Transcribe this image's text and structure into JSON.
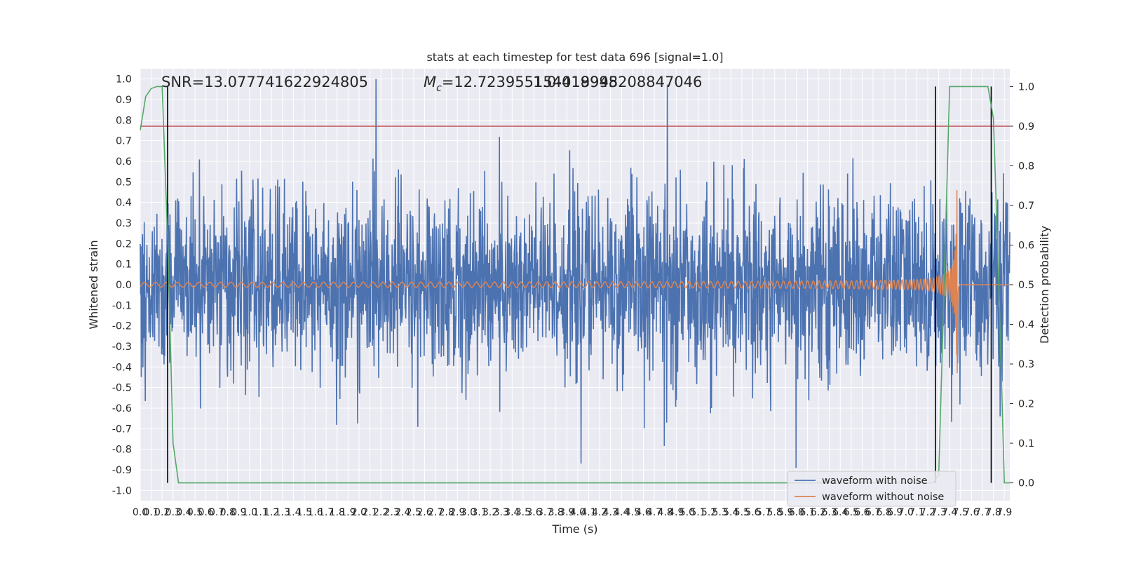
{
  "chart_data": {
    "type": "line",
    "title": "stats at each timestep for test data 696 [signal=1.0]",
    "xlabel": "Time (s)",
    "ylabel": "Whitened strain",
    "y2label": "Detection probability",
    "xlim": [
      0.0,
      7.95
    ],
    "ylim": [
      -1.05,
      1.05
    ],
    "y2lim": [
      -0.045,
      1.045
    ],
    "x_ticks": [
      "0.0",
      "0.1",
      "0.2",
      "0.3",
      "0.4",
      "0.5",
      "0.6",
      "0.7",
      "0.8",
      "0.9",
      "1.0",
      "1.1",
      "1.2",
      "1.3",
      "1.4",
      "1.5",
      "1.6",
      "1.7",
      "1.8",
      "1.9",
      "2.0",
      "2.1",
      "2.2",
      "2.3",
      "2.4",
      "2.5",
      "2.6",
      "2.7",
      "2.8",
      "2.9",
      "3.0",
      "3.1",
      "3.2",
      "3.3",
      "3.4",
      "3.5",
      "3.6",
      "3.7",
      "3.8",
      "3.9",
      "4.0",
      "4.1",
      "4.2",
      "4.3",
      "4.4",
      "4.5",
      "4.6",
      "4.7",
      "4.8",
      "4.9",
      "5.0",
      "5.1",
      "5.2",
      "5.3",
      "5.4",
      "5.5",
      "5.6",
      "5.7",
      "5.8",
      "5.9",
      "6.0",
      "6.1",
      "6.2",
      "6.3",
      "6.4",
      "6.5",
      "6.6",
      "6.7",
      "6.8",
      "6.9",
      "7.0",
      "7.1",
      "7.2",
      "7.3",
      "7.4",
      "7.5",
      "7.6",
      "7.7",
      "7.8",
      "7.9"
    ],
    "y_ticks": [
      "1.0",
      "0.9",
      "0.8",
      "0.7",
      "0.6",
      "0.5",
      "0.4",
      "0.3",
      "0.2",
      "0.1",
      "0.0",
      "-0.1",
      "-0.2",
      "-0.3",
      "-0.4",
      "-0.5",
      "-0.6",
      "-0.7",
      "-0.8",
      "-0.9",
      "-1.0"
    ],
    "y2_ticks": [
      "1.0",
      "0.9",
      "0.8",
      "0.7",
      "0.6",
      "0.5",
      "0.4",
      "0.3",
      "0.2",
      "0.1",
      "0.0"
    ],
    "series": [
      {
        "name": "waveform with noise",
        "color": "#4c72b0",
        "kind": "noise",
        "std": 0.22,
        "min": -0.94,
        "max": 1.0
      },
      {
        "name": "waveform without noise",
        "color": "#dd8452",
        "kind": "chirp",
        "merger_time": 7.47,
        "peak_amplitude": 0.46,
        "early_amplitude": 0.012
      },
      {
        "name": "detection probability",
        "color": "#55a868",
        "axis": "y2",
        "x": [
          0.0,
          0.05,
          0.1,
          0.15,
          0.2,
          0.25,
          0.3,
          0.35,
          0.4,
          7.25,
          7.3,
          7.35,
          7.4,
          7.45,
          7.75,
          7.8,
          7.85,
          7.9,
          7.95
        ],
        "y": [
          0.89,
          0.975,
          0.995,
          1.0,
          1.0,
          0.62,
          0.1,
          0.0,
          0.0,
          0.0,
          0.02,
          0.5,
          1.0,
          1.0,
          1.0,
          0.92,
          0.5,
          0.0,
          0.0
        ]
      }
    ],
    "threshold": {
      "value": 0.9,
      "axis": "y2",
      "color": "#c44e52"
    },
    "vertical_markers": [
      0.25,
      7.27,
      7.78
    ],
    "legend": {
      "placement": "lower-right",
      "entries": [
        "waveform with noise",
        "waveform without noise"
      ]
    },
    "grid": true
  },
  "annotations": {
    "snr": "SNR=13.077741622924805",
    "mc_symbol": "M",
    "mc_subscript": "c",
    "mc_value": "=12.723955154018945",
    "overlap_value": "1.0-419998208847046"
  },
  "colors": {
    "axes_bg": "#eaeaf2",
    "grid": "#ffffff",
    "text": "#262626"
  }
}
